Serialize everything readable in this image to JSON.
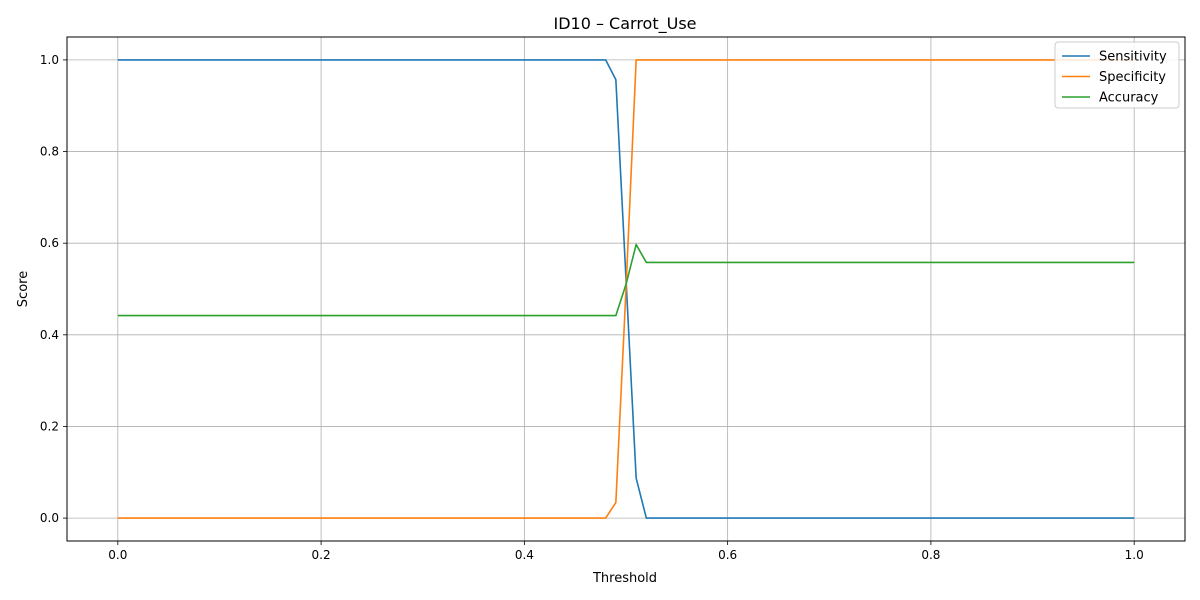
{
  "chart_data": {
    "type": "line",
    "title": "ID10 – Carrot_Use",
    "xlabel": "Threshold",
    "ylabel": "Score",
    "xlim": [
      -0.05,
      1.05
    ],
    "ylim": [
      -0.05,
      1.05
    ],
    "xticks": [
      0.0,
      0.2,
      0.4,
      0.6,
      0.8,
      1.0
    ],
    "xtick_labels": [
      "0.0",
      "0.2",
      "0.4",
      "0.6",
      "0.8",
      "1.0"
    ],
    "yticks": [
      0.0,
      0.2,
      0.4,
      0.6,
      0.8,
      1.0
    ],
    "ytick_labels": [
      "0.0",
      "0.2",
      "0.4",
      "0.6",
      "0.8",
      "1.0"
    ],
    "grid": true,
    "legend_position": "top-right",
    "series": [
      {
        "name": "Sensitivity",
        "color": "#1f77b4",
        "x": [
          0.0,
          0.48,
          0.49,
          0.5,
          0.51,
          0.52,
          1.0
        ],
        "y": [
          1.0,
          1.0,
          0.957,
          0.522,
          0.087,
          0.0,
          0.0
        ]
      },
      {
        "name": "Specificity",
        "color": "#ff7f0e",
        "x": [
          0.0,
          0.48,
          0.49,
          0.5,
          0.51,
          0.52,
          1.0
        ],
        "y": [
          0.0,
          0.0,
          0.034,
          0.5,
          1.0,
          1.0,
          1.0
        ]
      },
      {
        "name": "Accuracy",
        "color": "#2ca02c",
        "x": [
          0.0,
          0.49,
          0.5,
          0.51,
          0.52,
          1.0
        ],
        "y": [
          0.442,
          0.442,
          0.51,
          0.597,
          0.558,
          0.558
        ]
      }
    ]
  }
}
